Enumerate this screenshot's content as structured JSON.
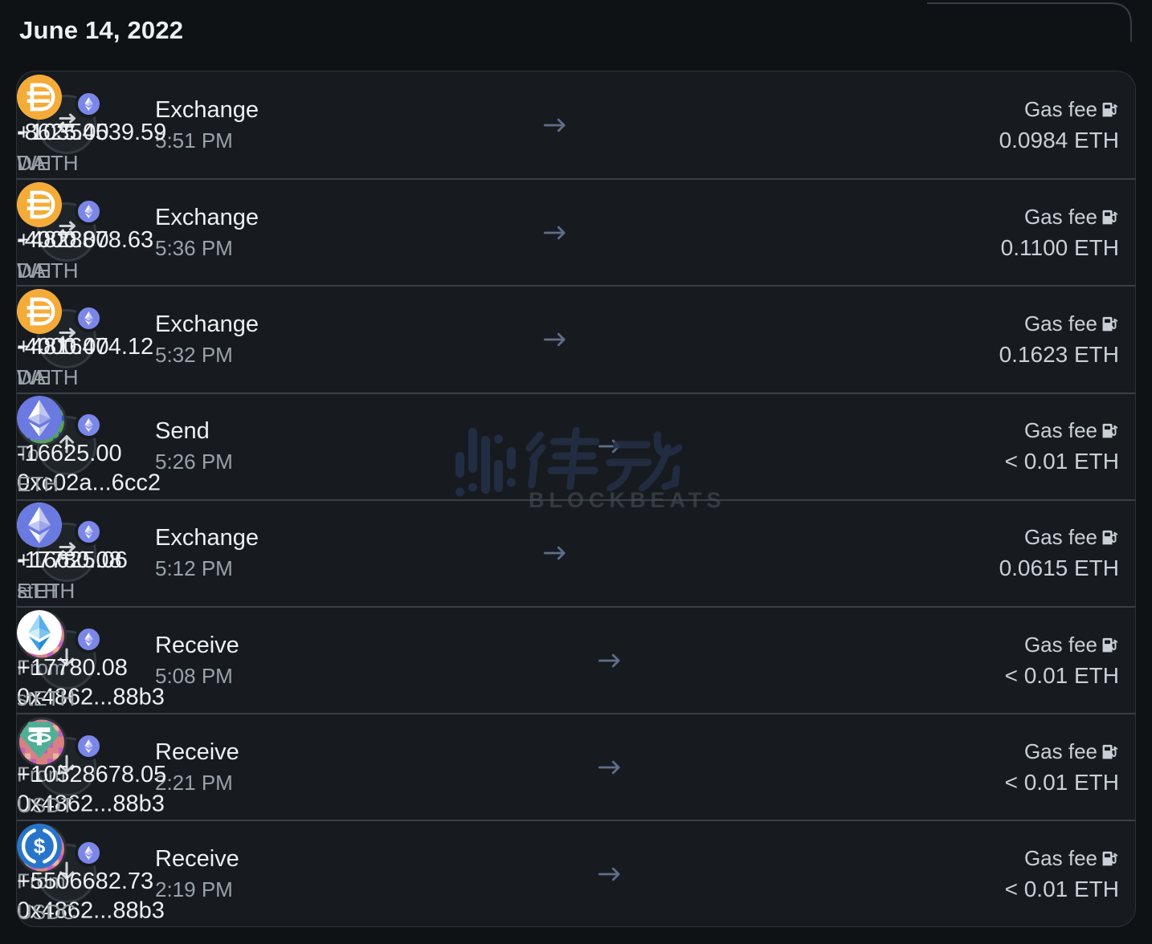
{
  "page": {
    "date_header": "June 14, 2022"
  },
  "watermark": {
    "cjk": "律动",
    "latin": "BLOCKBEATS"
  },
  "gas_label": "Gas fee",
  "transactions": [
    {
      "type": "Exchange",
      "time": "5:51 PM",
      "op_icon": "exchange",
      "from": {
        "kind": "token",
        "icon": "weth",
        "amount": "-8625.00",
        "symbol": "WETH"
      },
      "to": {
        "kind": "token",
        "icon": "dai",
        "amount": "+10354539.59",
        "symbol": "DAI"
      },
      "gas_fee": "0.0984 ETH"
    },
    {
      "type": "Exchange",
      "time": "5:36 PM",
      "op_icon": "exchange",
      "from": {
        "kind": "token",
        "icon": "weth",
        "amount": "-4000.00",
        "symbol": "WETH"
      },
      "to": {
        "kind": "token",
        "icon": "dai",
        "amount": "+4828878.63",
        "symbol": "DAI"
      },
      "gas_fee": "0.1100 ETH"
    },
    {
      "type": "Exchange",
      "time": "5:32 PM",
      "op_icon": "exchange",
      "from": {
        "kind": "token",
        "icon": "weth",
        "amount": "-4000.00",
        "symbol": "WETH"
      },
      "to": {
        "kind": "token",
        "icon": "dai",
        "amount": "+4816474.12",
        "symbol": "DAI"
      },
      "gas_fee": "0.1623 ETH"
    },
    {
      "type": "Send",
      "time": "5:26 PM",
      "op_icon": "send",
      "from": {
        "kind": "address",
        "icon": "avatar_to",
        "label": "To",
        "address": "0xc02a...6cc2"
      },
      "to": {
        "kind": "token",
        "icon": "eth",
        "amount": "-16625.00",
        "symbol": "ETH"
      },
      "gas_fee": "< 0.01 ETH"
    },
    {
      "type": "Exchange",
      "time": "5:12 PM",
      "op_icon": "exchange",
      "from": {
        "kind": "token",
        "icon": "steth",
        "amount": "-17780.08",
        "symbol": "stETH"
      },
      "to": {
        "kind": "token",
        "icon": "eth",
        "amount": "+16625.06",
        "symbol": "ETH"
      },
      "gas_fee": "0.0615 ETH"
    },
    {
      "type": "Receive",
      "time": "5:08 PM",
      "op_icon": "receive",
      "from": {
        "kind": "address",
        "icon": "avatar_from",
        "label": "From",
        "address": "0x4862...88b3"
      },
      "to": {
        "kind": "token",
        "icon": "steth",
        "amount": "+17780.08",
        "symbol": "stETH"
      },
      "gas_fee": "< 0.01 ETH"
    },
    {
      "type": "Receive",
      "time": "2:21 PM",
      "op_icon": "receive",
      "from": {
        "kind": "address",
        "icon": "avatar_from",
        "label": "From",
        "address": "0x4862...88b3"
      },
      "to": {
        "kind": "token",
        "icon": "usdt",
        "amount": "+10528678.05",
        "symbol": "USDT"
      },
      "gas_fee": "< 0.01 ETH"
    },
    {
      "type": "Receive",
      "time": "2:19 PM",
      "op_icon": "receive",
      "from": {
        "kind": "address",
        "icon": "avatar_from",
        "label": "From",
        "address": "0x4862...88b3"
      },
      "to": {
        "kind": "token",
        "icon": "usdc",
        "amount": "+5506682.73",
        "symbol": "USDC"
      },
      "gas_fee": "< 0.01 ETH"
    }
  ],
  "colors": {
    "page_bg": "#0f1214",
    "card_bg": "#171b1f",
    "card_border": "#2c3339",
    "divider": "#394048",
    "text_primary": "#eef1f3",
    "text_secondary": "#99a2aa",
    "text_gas": "#c9d0d7",
    "arrow": "#5f6e8a",
    "badge_eth": "#7b86e9",
    "eth": "#6b7ae0",
    "dai": "#f5ab37",
    "usdt": "#4faf95",
    "usdc": "#2775ca",
    "watermark_blue": "#232f47"
  }
}
